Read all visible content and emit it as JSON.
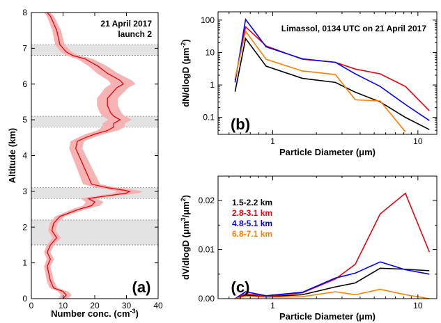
{
  "chart_data": [
    {
      "id": "a",
      "type": "line",
      "panel_label": "(a)",
      "annotation": [
        "21 April 2017",
        "launch 2"
      ],
      "xlabel": "Number conc. (cm",
      "xlabel_sup": "-3",
      "xlabel_tail": ")",
      "ylabel": "Altitude (km)",
      "xlim": [
        0,
        40
      ],
      "ylim": [
        0,
        8
      ],
      "xticks": [
        0,
        10,
        20,
        30,
        40
      ],
      "yticks": [
        0,
        1,
        2,
        3,
        4,
        5,
        6,
        7,
        8
      ],
      "line_color": "#e8000b",
      "band_color": "#f6b3b3",
      "shaded_layers": [
        [
          1.5,
          2.2
        ],
        [
          2.8,
          3.1
        ],
        [
          4.8,
          5.1
        ],
        [
          6.8,
          7.1
        ]
      ],
      "profile": [
        [
          0.0,
          10
        ],
        [
          0.1,
          11
        ],
        [
          0.2,
          10
        ],
        [
          0.3,
          7
        ],
        [
          0.5,
          6
        ],
        [
          0.7,
          5.5
        ],
        [
          0.9,
          5
        ],
        [
          1.1,
          6
        ],
        [
          1.3,
          5
        ],
        [
          1.5,
          6
        ],
        [
          1.7,
          8
        ],
        [
          1.9,
          6.5
        ],
        [
          2.1,
          7
        ],
        [
          2.3,
          9
        ],
        [
          2.5,
          15
        ],
        [
          2.6,
          19
        ],
        [
          2.7,
          20
        ],
        [
          2.8,
          18
        ],
        [
          2.9,
          26
        ],
        [
          2.95,
          30
        ],
        [
          3.0,
          31
        ],
        [
          3.05,
          28
        ],
        [
          3.1,
          24
        ],
        [
          3.2,
          19
        ],
        [
          3.4,
          18
        ],
        [
          3.6,
          17
        ],
        [
          3.8,
          16
        ],
        [
          4.0,
          15
        ],
        [
          4.2,
          14
        ],
        [
          4.4,
          14.5
        ],
        [
          4.5,
          17
        ],
        [
          4.6,
          20
        ],
        [
          4.7,
          24
        ],
        [
          4.8,
          26
        ],
        [
          4.9,
          26
        ],
        [
          5.0,
          28
        ],
        [
          5.1,
          26
        ],
        [
          5.2,
          25
        ],
        [
          5.4,
          24
        ],
        [
          5.6,
          24
        ],
        [
          5.8,
          26
        ],
        [
          5.9,
          27
        ],
        [
          6.0,
          29
        ],
        [
          6.1,
          28
        ],
        [
          6.2,
          26
        ],
        [
          6.3,
          24
        ],
        [
          6.5,
          21
        ],
        [
          6.7,
          17
        ],
        [
          6.8,
          13
        ],
        [
          6.9,
          11
        ],
        [
          7.0,
          10
        ],
        [
          7.1,
          9
        ],
        [
          7.3,
          8.5
        ],
        [
          7.5,
          8
        ],
        [
          7.7,
          7
        ],
        [
          7.9,
          6
        ],
        [
          8.0,
          5
        ]
      ]
    },
    {
      "id": "b",
      "type": "line",
      "panel_label": "(b)",
      "title": "Limassol, 0134 UTC on 21 April 2017",
      "xlabel": "Particle Diameter (μm)",
      "ylabel": "dN/dlogD (μm",
      "ylabel_sup": "-2",
      "ylabel_tail": ")",
      "xscale": "log",
      "yscale": "log",
      "xlim": [
        0.42,
        13.5
      ],
      "ylim": [
        0.03,
        180
      ],
      "xticks": [
        1,
        10
      ],
      "yticks": [
        0.1,
        1,
        10,
        100
      ],
      "ytick_labels": [
        "0.1",
        "1",
        "10",
        "100"
      ],
      "x": [
        0.55,
        0.65,
        0.9,
        1.6,
        2.7,
        3.7,
        5.5,
        8.2,
        12.0
      ],
      "series": [
        {
          "layer": "1.5-2.2 km",
          "color": "#000000",
          "values": [
            0.62,
            27,
            3.8,
            1.6,
            1.2,
            0.6,
            0.3,
            0.1,
            0.042
          ]
        },
        {
          "layer": "2.8-3.1 km",
          "color": "#e8000b",
          "values": [
            1.4,
            62,
            16,
            6.2,
            5,
            3.1,
            2.2,
            0.9,
            0.16
          ]
        },
        {
          "layer": "4.8-5.1 km",
          "color": "#0000ee",
          "values": [
            1.2,
            105,
            15,
            6.4,
            5,
            2.2,
            0.9,
            0.25,
            0.08
          ]
        },
        {
          "layer": "6.8-7.1 km",
          "color": "#ff8000",
          "values": [
            1.6,
            45,
            6.2,
            2.7,
            2.1,
            0.35,
            0.32,
            0.036,
            null
          ]
        }
      ]
    },
    {
      "id": "c",
      "type": "line",
      "panel_label": "(c)",
      "xlabel": "Particle Diameter (μm)",
      "ylabel": "dV/dlogD (μm",
      "ylabel_sup": "3",
      "ylabel_tail": "/μm",
      "ylabel_sup2": "2",
      "ylabel_end": ")",
      "xscale": "log",
      "xlim": [
        0.42,
        13.5
      ],
      "ylim": [
        0,
        0.025
      ],
      "xticks": [
        1,
        10
      ],
      "yticks": [
        0.0,
        0.01,
        0.02
      ],
      "ytick_labels": [
        "0.00",
        "0.01",
        "0.02"
      ],
      "x": [
        0.55,
        0.65,
        0.9,
        1.6,
        2.7,
        3.7,
        5.5,
        8.2,
        12.0
      ],
      "legend": [
        "1.5-2.2 km",
        "2.8-3.1 km",
        "4.8-5.1 km",
        "6.8-7.1 km"
      ],
      "series": [
        {
          "layer": "1.5-2.2 km",
          "color": "#000000",
          "values": [
            0.0,
            0.0007,
            0.0004,
            0.0008,
            0.0024,
            0.0032,
            0.0062,
            0.006,
            0.0057
          ]
        },
        {
          "layer": "2.8-3.1 km",
          "color": "#e8000b",
          "values": [
            0.0,
            0.001,
            0.0005,
            0.0012,
            0.004,
            0.007,
            0.0173,
            0.0215,
            0.0095
          ]
        },
        {
          "layer": "4.8-5.1 km",
          "color": "#0000ee",
          "values": [
            0.0,
            0.0014,
            0.0006,
            0.0013,
            0.0042,
            0.0052,
            0.0075,
            0.0059,
            0.005
          ]
        },
        {
          "layer": "6.8-7.1 km",
          "color": "#ff8000",
          "values": [
            0.0,
            0.0005,
            0.0003,
            0.0004,
            0.0014,
            0.0008,
            0.0019,
            0.0008,
            0.0
          ]
        }
      ]
    }
  ]
}
